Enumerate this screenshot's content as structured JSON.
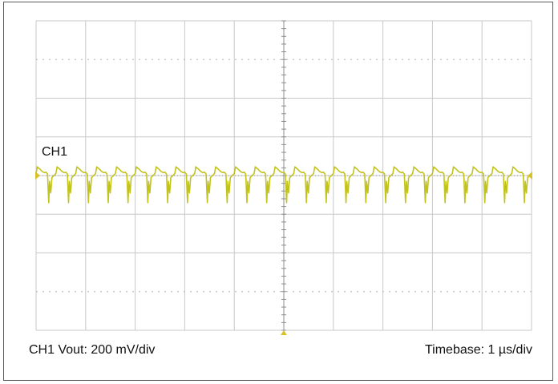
{
  "labels": {
    "channel_tag": "CH1",
    "vertical_scale": "CH1 Vout: 200 mV/div",
    "timebase": "Timebase: 1 µs/div"
  },
  "colors": {
    "trace": "#c3c31e",
    "grid": "#c8c8c8",
    "dotted_grid": "#b4b4b4",
    "axis": "#8c8c8c",
    "marker": "#d8c228",
    "background": "#ffffff"
  },
  "chart_data": {
    "type": "line",
    "title": "",
    "xlabel": "Timebase: 1 µs/div",
    "ylabel": "CH1 Vout: 200 mV/div",
    "grid": true,
    "x_divisions": 10,
    "y_divisions": 8,
    "x_unit": "µs",
    "y_unit": "mV",
    "volts_per_div_mV": 200,
    "time_per_div_us": 1,
    "xlim": [
      0,
      10
    ],
    "ylim": [
      -800,
      800
    ],
    "series": [
      {
        "name": "CH1",
        "waveform": "sawtooth ripple with negative switching spikes",
        "period_us": 0.4,
        "x": [
          0.0,
          0.1,
          0.2,
          0.3,
          0.4,
          0.5,
          0.6,
          0.7,
          0.8,
          0.9,
          1.0
        ],
        "y_mV": [
          0,
          40,
          20,
          0,
          -140,
          -20,
          30,
          10,
          -10,
          -140,
          0
        ]
      }
    ]
  }
}
